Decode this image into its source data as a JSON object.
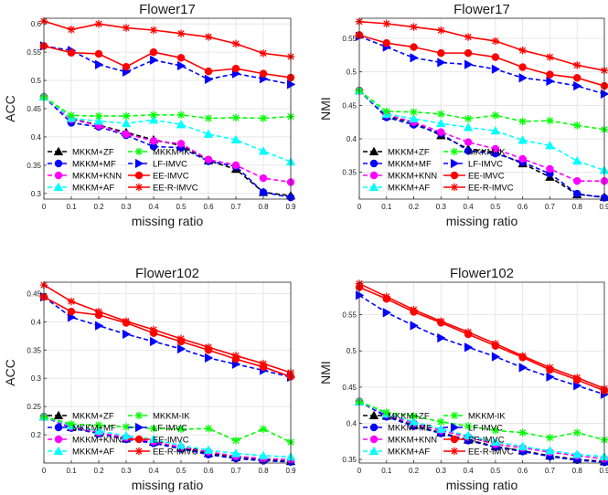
{
  "styles": {
    "MKKM+ZF": {
      "color": "#000000",
      "marker": "triangle-up",
      "dash": "dash"
    },
    "MKKM+MF": {
      "color": "#0000ff",
      "marker": "circle",
      "dash": "dash"
    },
    "MKKM+KNN": {
      "color": "#ff00ff",
      "marker": "circle",
      "dash": "dash"
    },
    "MKKM+AF": {
      "color": "#00ffff",
      "marker": "triangle-up",
      "dash": "dash"
    },
    "MKKM-IK": {
      "color": "#00ff00",
      "marker": "star",
      "dash": "dash"
    },
    "LF-IMVC": {
      "color": "#0000ff",
      "marker": "triangle-right",
      "dash": "dash"
    },
    "EE-IMVC": {
      "color": "#ff0000",
      "marker": "circle",
      "dash": "solid"
    },
    "EE-R-IMVC": {
      "color": "#ff0000",
      "marker": "star",
      "dash": "solid"
    }
  },
  "chart_data": [
    {
      "type": "line",
      "title": "Flower17",
      "xlabel": "missing ratio",
      "ylabel": "ACC",
      "x": [
        0,
        0.1,
        0.2,
        0.3,
        0.4,
        0.5,
        0.6,
        0.7,
        0.8,
        0.9
      ],
      "xlim": [
        0,
        0.9
      ],
      "ylim": [
        0.29,
        0.61
      ],
      "xticks": [
        "0",
        "0.1",
        "0.2",
        "0.3",
        "0.4",
        "0.5",
        "0.6",
        "0.7",
        "0.8",
        "0.9"
      ],
      "yticks": [
        0.3,
        0.35,
        0.4,
        0.45,
        0.5,
        0.55,
        0.6
      ],
      "ytick_labels": [
        "0.3",
        "0.35",
        "0.4",
        "0.45",
        "0.5",
        "0.55",
        "0.6"
      ],
      "grid": true,
      "legend": "bottom",
      "series": [
        {
          "name": "MKKM+ZF",
          "values": [
            0.471,
            0.432,
            0.421,
            0.408,
            0.395,
            0.385,
            0.358,
            0.343,
            0.302,
            0.296
          ]
        },
        {
          "name": "MKKM+MF",
          "values": [
            0.471,
            0.425,
            0.418,
            0.403,
            0.383,
            0.381,
            0.357,
            0.348,
            0.302,
            0.293
          ]
        },
        {
          "name": "MKKM+KNN",
          "values": [
            0.471,
            0.431,
            0.42,
            0.405,
            0.393,
            0.388,
            0.36,
            0.35,
            0.327,
            0.32
          ]
        },
        {
          "name": "MKKM+AF",
          "values": [
            0.471,
            0.433,
            0.428,
            0.424,
            0.43,
            0.422,
            0.405,
            0.395,
            0.375,
            0.356
          ]
        },
        {
          "name": "MKKM-IK",
          "values": [
            0.471,
            0.438,
            0.437,
            0.437,
            0.439,
            0.439,
            0.433,
            0.434,
            0.433,
            0.436
          ]
        },
        {
          "name": "LF-IMVC",
          "values": [
            0.561,
            0.553,
            0.528,
            0.515,
            0.536,
            0.526,
            0.502,
            0.512,
            0.503,
            0.493
          ]
        },
        {
          "name": "EE-IMVC",
          "values": [
            0.561,
            0.549,
            0.547,
            0.524,
            0.55,
            0.54,
            0.516,
            0.521,
            0.512,
            0.505
          ]
        },
        {
          "name": "EE-R-IMVC",
          "values": [
            0.605,
            0.59,
            0.6,
            0.593,
            0.589,
            0.583,
            0.577,
            0.565,
            0.548,
            0.542
          ]
        }
      ]
    },
    {
      "type": "line",
      "title": "Flower17",
      "xlabel": "missing ratio",
      "ylabel": "NMI",
      "x": [
        0,
        0.1,
        0.2,
        0.3,
        0.4,
        0.5,
        0.6,
        0.7,
        0.8,
        0.9
      ],
      "xlim": [
        0,
        0.9
      ],
      "ylim": [
        0.31,
        0.58
      ],
      "xticks": [
        "0",
        "0.1",
        "0.2",
        "0.3",
        "0.4",
        "0.5",
        "0.6",
        "0.7",
        "0.8",
        "0.9"
      ],
      "yticks": [
        0.35,
        0.4,
        0.45,
        0.5,
        0.55
      ],
      "ytick_labels": [
        "0.35",
        "0.4",
        "0.45",
        "0.5",
        "0.55"
      ],
      "grid": true,
      "legend": "bottom",
      "series": [
        {
          "name": "MKKM+ZF",
          "values": [
            0.472,
            0.434,
            0.424,
            0.405,
            0.385,
            0.38,
            0.363,
            0.343,
            0.317,
            0.313
          ]
        },
        {
          "name": "MKKM+MF",
          "values": [
            0.472,
            0.432,
            0.421,
            0.408,
            0.382,
            0.378,
            0.365,
            0.348,
            0.318,
            0.312
          ]
        },
        {
          "name": "MKKM+KNN",
          "values": [
            0.472,
            0.436,
            0.425,
            0.41,
            0.395,
            0.385,
            0.37,
            0.355,
            0.337,
            0.337
          ]
        },
        {
          "name": "MKKM+AF",
          "values": [
            0.472,
            0.437,
            0.43,
            0.423,
            0.417,
            0.412,
            0.398,
            0.39,
            0.367,
            0.353
          ]
        },
        {
          "name": "MKKM-IK",
          "values": [
            0.472,
            0.441,
            0.44,
            0.437,
            0.43,
            0.435,
            0.426,
            0.427,
            0.42,
            0.414
          ]
        },
        {
          "name": "LF-IMVC",
          "values": [
            0.553,
            0.537,
            0.521,
            0.514,
            0.511,
            0.504,
            0.491,
            0.486,
            0.479,
            0.467
          ]
        },
        {
          "name": "EE-IMVC",
          "values": [
            0.555,
            0.543,
            0.537,
            0.528,
            0.528,
            0.522,
            0.507,
            0.496,
            0.491,
            0.479
          ]
        },
        {
          "name": "EE-R-IMVC",
          "values": [
            0.575,
            0.572,
            0.567,
            0.562,
            0.552,
            0.546,
            0.532,
            0.522,
            0.51,
            0.502
          ]
        }
      ]
    },
    {
      "type": "line",
      "title": "Flower102",
      "xlabel": "missing ratio",
      "ylabel": "ACC",
      "x": [
        0,
        0.1,
        0.2,
        0.3,
        0.4,
        0.5,
        0.6,
        0.7,
        0.8,
        0.9
      ],
      "xlim": [
        0,
        0.9
      ],
      "ylim": [
        0.15,
        0.47
      ],
      "xticks": [
        "0",
        "0.1",
        "0.2",
        "0.3",
        "0.4",
        "0.5",
        "0.6",
        "0.7",
        "0.8",
        "0.9"
      ],
      "yticks": [
        0.2,
        0.25,
        0.3,
        0.35,
        0.4,
        0.45
      ],
      "ytick_labels": [
        "0.2",
        "0.25",
        "0.3",
        "0.35",
        "0.4",
        "0.45"
      ],
      "grid": true,
      "legend": "bottom",
      "series": [
        {
          "name": "MKKM+ZF",
          "values": [
            0.232,
            0.213,
            0.203,
            0.193,
            0.187,
            0.177,
            0.167,
            0.16,
            0.156,
            0.153
          ]
        },
        {
          "name": "MKKM+MF",
          "values": [
            0.232,
            0.212,
            0.202,
            0.192,
            0.185,
            0.175,
            0.165,
            0.158,
            0.154,
            0.152
          ]
        },
        {
          "name": "MKKM+KNN",
          "values": [
            0.232,
            0.214,
            0.204,
            0.195,
            0.188,
            0.178,
            0.17,
            0.162,
            0.158,
            0.156
          ]
        },
        {
          "name": "MKKM+AF",
          "values": [
            0.232,
            0.216,
            0.207,
            0.198,
            0.192,
            0.181,
            0.173,
            0.167,
            0.163,
            0.161
          ]
        },
        {
          "name": "MKKM-IK",
          "values": [
            0.232,
            0.219,
            0.217,
            0.214,
            0.211,
            0.21,
            0.211,
            0.19,
            0.21,
            0.187
          ]
        },
        {
          "name": "LF-IMVC",
          "values": [
            0.444,
            0.408,
            0.393,
            0.378,
            0.365,
            0.352,
            0.336,
            0.325,
            0.314,
            0.302
          ]
        },
        {
          "name": "EE-IMVC",
          "values": [
            0.444,
            0.418,
            0.412,
            0.398,
            0.38,
            0.365,
            0.35,
            0.334,
            0.32,
            0.303
          ]
        },
        {
          "name": "EE-R-IMVC",
          "values": [
            0.465,
            0.436,
            0.418,
            0.401,
            0.386,
            0.37,
            0.355,
            0.34,
            0.326,
            0.31
          ]
        }
      ]
    },
    {
      "type": "line",
      "title": "Flower102",
      "xlabel": "missing ratio",
      "ylabel": "NMI",
      "x": [
        0,
        0.1,
        0.2,
        0.3,
        0.4,
        0.5,
        0.6,
        0.7,
        0.8,
        0.9
      ],
      "xlim": [
        0,
        0.9
      ],
      "ylim": [
        0.345,
        0.595
      ],
      "xticks": [
        "0",
        "0.1",
        "0.2",
        "0.3",
        "0.4",
        "0.5",
        "0.6",
        "0.7",
        "0.8",
        "0.9"
      ],
      "yticks": [
        0.35,
        0.4,
        0.45,
        0.5,
        0.55
      ],
      "ytick_labels": [
        "0.35",
        "0.4",
        "0.45",
        "0.5",
        "0.55"
      ],
      "grid": true,
      "legend": "bottom",
      "series": [
        {
          "name": "MKKM+ZF",
          "values": [
            0.43,
            0.41,
            0.397,
            0.387,
            0.377,
            0.368,
            0.362,
            0.355,
            0.35,
            0.347
          ]
        },
        {
          "name": "MKKM+MF",
          "values": [
            0.43,
            0.409,
            0.396,
            0.386,
            0.376,
            0.367,
            0.361,
            0.354,
            0.349,
            0.346
          ]
        },
        {
          "name": "MKKM+KNN",
          "values": [
            0.43,
            0.412,
            0.4,
            0.39,
            0.381,
            0.371,
            0.366,
            0.36,
            0.355,
            0.351
          ]
        },
        {
          "name": "MKKM+AF",
          "values": [
            0.43,
            0.413,
            0.402,
            0.392,
            0.383,
            0.374,
            0.368,
            0.362,
            0.357,
            0.354
          ]
        },
        {
          "name": "MKKM-IK",
          "values": [
            0.43,
            0.415,
            0.41,
            0.402,
            0.396,
            0.39,
            0.387,
            0.38,
            0.387,
            0.377
          ]
        },
        {
          "name": "LF-IMVC",
          "values": [
            0.577,
            0.553,
            0.535,
            0.518,
            0.505,
            0.492,
            0.477,
            0.464,
            0.452,
            0.44
          ]
        },
        {
          "name": "EE-IMVC",
          "values": [
            0.588,
            0.572,
            0.554,
            0.539,
            0.523,
            0.507,
            0.491,
            0.474,
            0.46,
            0.445
          ]
        },
        {
          "name": "EE-R-IMVC",
          "values": [
            0.593,
            0.575,
            0.557,
            0.541,
            0.526,
            0.51,
            0.493,
            0.477,
            0.463,
            0.448
          ]
        }
      ]
    }
  ]
}
